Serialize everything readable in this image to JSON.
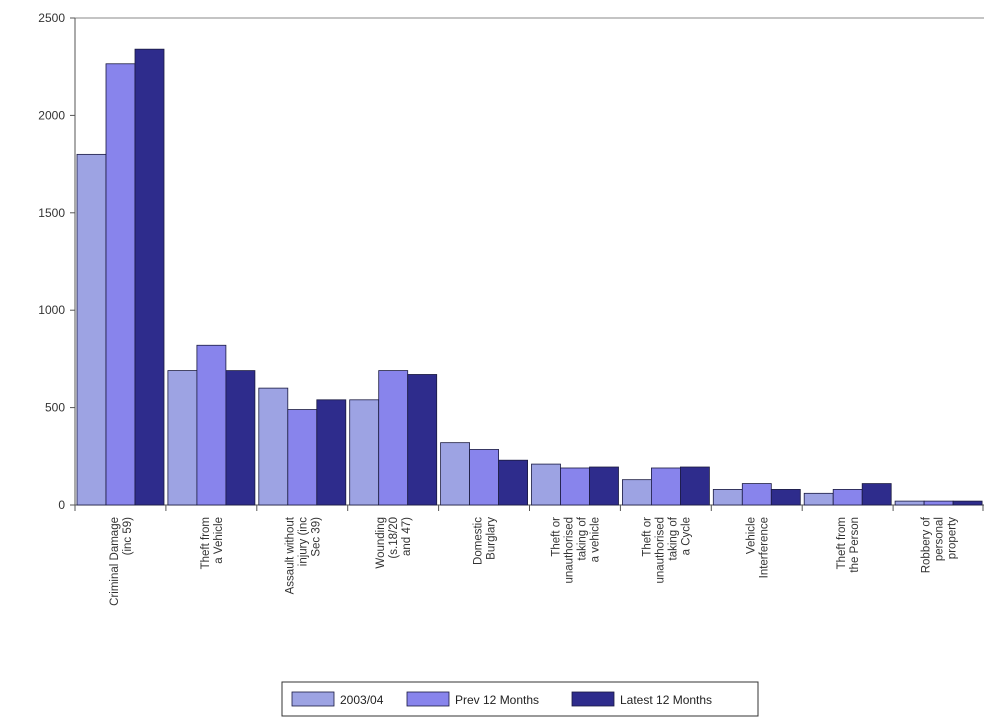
{
  "chart_data": {
    "type": "bar",
    "categories": [
      [
        "Criminal Damage",
        "(inc 59)"
      ],
      [
        "Theft from",
        "a Vehicle"
      ],
      [
        "Assault without",
        "injury (inc",
        "Sec 39)"
      ],
      [
        "Wounding",
        "(s.18/20",
        "and 47)"
      ],
      [
        "Domestic",
        "Burglary"
      ],
      [
        "Theft or",
        "unauthorised",
        "taking of",
        "a vehicle"
      ],
      [
        "Theft or",
        "unauthorised",
        "taking of",
        "a Cycle"
      ],
      [
        "Vehicle",
        "Interference"
      ],
      [
        "Theft from",
        "the Person"
      ],
      [
        "Robbery of",
        "personal",
        "property"
      ]
    ],
    "series": [
      {
        "name": "2003/04",
        "color": "#9da3e3",
        "values": [
          1800,
          690,
          600,
          540,
          320,
          210,
          130,
          80,
          60,
          20
        ]
      },
      {
        "name": "Prev 12 Months",
        "color": "#8884ec",
        "values": [
          2265,
          820,
          490,
          690,
          285,
          190,
          190,
          110,
          80,
          20
        ]
      },
      {
        "name": "Latest 12 Months",
        "color": "#2e2c8c",
        "values": [
          2340,
          690,
          540,
          670,
          230,
          195,
          195,
          80,
          110,
          20
        ]
      }
    ],
    "yticks": [
      0,
      500,
      1000,
      1500,
      2000,
      2500
    ],
    "ylim": [
      0,
      2500
    ],
    "title": "",
    "xlabel": "",
    "ylabel": "",
    "grid": false,
    "legend_position": "bottom"
  }
}
